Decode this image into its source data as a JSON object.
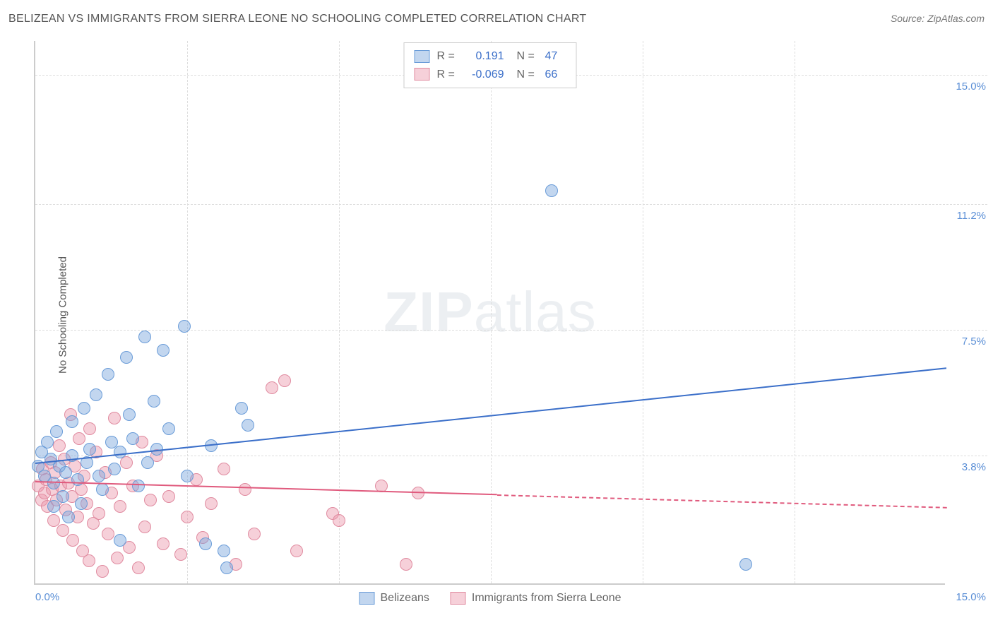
{
  "title": "BELIZEAN VS IMMIGRANTS FROM SIERRA LEONE NO SCHOOLING COMPLETED CORRELATION CHART",
  "source": "Source: ZipAtlas.com",
  "y_axis_label": "No Schooling Completed",
  "watermark": {
    "bold": "ZIP",
    "rest": "atlas"
  },
  "colors": {
    "series_a_fill": "rgba(120,165,220,0.45)",
    "series_a_stroke": "#6a9cd8",
    "series_b_fill": "rgba(235,150,170,0.45)",
    "series_b_stroke": "#e08ba0",
    "line_a": "#3b6fc9",
    "line_b": "#e05a7d",
    "axis_text": "#5b8fd6",
    "grid": "#dddddd",
    "title_text": "#555555"
  },
  "chart": {
    "type": "scatter",
    "xlim": [
      0,
      15
    ],
    "ylim": [
      0,
      16
    ],
    "y_ticks": [
      {
        "v": 3.8,
        "label": "3.8%"
      },
      {
        "v": 7.5,
        "label": "7.5%"
      },
      {
        "v": 11.2,
        "label": "11.2%"
      },
      {
        "v": 15.0,
        "label": "15.0%"
      }
    ],
    "x_ticks_v": [
      2.5,
      5.0,
      7.5,
      10.0,
      12.5
    ],
    "x_left_label": "0.0%",
    "x_right_label": "15.0%",
    "point_radius": 9
  },
  "legend_top": [
    {
      "swatch_fill": "rgba(120,165,220,0.45)",
      "swatch_stroke": "#6a9cd8",
      "r": "0.191",
      "n": "47"
    },
    {
      "swatch_fill": "rgba(235,150,170,0.45)",
      "swatch_stroke": "#e08ba0",
      "r": "-0.069",
      "n": "66"
    }
  ],
  "legend_bottom": [
    {
      "swatch_fill": "rgba(120,165,220,0.45)",
      "swatch_stroke": "#6a9cd8",
      "label": "Belizeans"
    },
    {
      "swatch_fill": "rgba(235,150,170,0.45)",
      "swatch_stroke": "#e08ba0",
      "label": "Immigrants from Sierra Leone"
    }
  ],
  "series_a": {
    "regression": {
      "x1": 0,
      "y1": 3.6,
      "x2": 15,
      "y2": 6.4,
      "solid_until_x": 15
    },
    "points": [
      [
        0.1,
        3.9
      ],
      [
        0.15,
        3.2
      ],
      [
        0.2,
        4.2
      ],
      [
        0.3,
        2.3
      ],
      [
        0.3,
        3.0
      ],
      [
        0.35,
        4.5
      ],
      [
        0.4,
        3.5
      ],
      [
        0.45,
        2.6
      ],
      [
        0.5,
        3.3
      ],
      [
        0.55,
        2.0
      ],
      [
        0.6,
        3.8
      ],
      [
        0.6,
        4.8
      ],
      [
        0.7,
        3.1
      ],
      [
        0.75,
        2.4
      ],
      [
        0.8,
        5.2
      ],
      [
        0.85,
        3.6
      ],
      [
        0.9,
        4.0
      ],
      [
        1.0,
        5.6
      ],
      [
        1.05,
        3.2
      ],
      [
        1.1,
        2.8
      ],
      [
        1.2,
        6.2
      ],
      [
        1.25,
        4.2
      ],
      [
        1.3,
        3.4
      ],
      [
        1.4,
        3.9
      ],
      [
        1.5,
        6.7
      ],
      [
        1.55,
        5.0
      ],
      [
        1.6,
        4.3
      ],
      [
        1.7,
        2.9
      ],
      [
        1.8,
        7.3
      ],
      [
        1.85,
        3.6
      ],
      [
        1.95,
        5.4
      ],
      [
        2.0,
        4.0
      ],
      [
        2.1,
        6.9
      ],
      [
        2.2,
        4.6
      ],
      [
        2.45,
        7.6
      ],
      [
        2.5,
        3.2
      ],
      [
        2.8,
        1.2
      ],
      [
        2.9,
        4.1
      ],
      [
        3.1,
        1.0
      ],
      [
        3.15,
        0.5
      ],
      [
        3.4,
        5.2
      ],
      [
        3.5,
        4.7
      ],
      [
        1.4,
        1.3
      ],
      [
        8.5,
        11.6
      ],
      [
        11.7,
        0.6
      ],
      [
        0.05,
        3.5
      ],
      [
        0.25,
        3.7
      ]
    ]
  },
  "series_b": {
    "regression": {
      "x1": 0,
      "y1": 3.05,
      "x2": 15,
      "y2": 2.3,
      "solid_until_x": 7.6
    },
    "points": [
      [
        0.05,
        2.9
      ],
      [
        0.1,
        2.5
      ],
      [
        0.12,
        3.4
      ],
      [
        0.15,
        2.7
      ],
      [
        0.18,
        3.1
      ],
      [
        0.2,
        2.3
      ],
      [
        0.25,
        3.6
      ],
      [
        0.28,
        2.8
      ],
      [
        0.3,
        1.9
      ],
      [
        0.32,
        3.3
      ],
      [
        0.35,
        2.5
      ],
      [
        0.4,
        4.1
      ],
      [
        0.42,
        2.9
      ],
      [
        0.45,
        1.6
      ],
      [
        0.48,
        3.7
      ],
      [
        0.5,
        2.2
      ],
      [
        0.55,
        3.0
      ],
      [
        0.58,
        5.0
      ],
      [
        0.6,
        2.6
      ],
      [
        0.62,
        1.3
      ],
      [
        0.65,
        3.5
      ],
      [
        0.7,
        2.0
      ],
      [
        0.72,
        4.3
      ],
      [
        0.75,
        2.8
      ],
      [
        0.78,
        1.0
      ],
      [
        0.8,
        3.2
      ],
      [
        0.85,
        2.4
      ],
      [
        0.88,
        0.7
      ],
      [
        0.9,
        4.6
      ],
      [
        0.95,
        1.8
      ],
      [
        1.0,
        3.9
      ],
      [
        1.05,
        2.1
      ],
      [
        1.1,
        0.4
      ],
      [
        1.15,
        3.3
      ],
      [
        1.2,
        1.5
      ],
      [
        1.25,
        2.7
      ],
      [
        1.3,
        4.9
      ],
      [
        1.35,
        0.8
      ],
      [
        1.4,
        2.3
      ],
      [
        1.5,
        3.6
      ],
      [
        1.55,
        1.1
      ],
      [
        1.6,
        2.9
      ],
      [
        1.7,
        0.5
      ],
      [
        1.75,
        4.2
      ],
      [
        1.8,
        1.7
      ],
      [
        1.9,
        2.5
      ],
      [
        2.0,
        3.8
      ],
      [
        2.1,
        1.2
      ],
      [
        2.2,
        2.6
      ],
      [
        2.4,
        0.9
      ],
      [
        2.5,
        2.0
      ],
      [
        2.65,
        3.1
      ],
      [
        2.75,
        1.4
      ],
      [
        2.9,
        2.4
      ],
      [
        3.1,
        3.4
      ],
      [
        3.3,
        0.6
      ],
      [
        3.45,
        2.8
      ],
      [
        3.6,
        1.5
      ],
      [
        3.9,
        5.8
      ],
      [
        4.1,
        6.0
      ],
      [
        4.3,
        1.0
      ],
      [
        4.9,
        2.1
      ],
      [
        5.0,
        1.9
      ],
      [
        5.7,
        2.9
      ],
      [
        6.1,
        0.6
      ],
      [
        6.3,
        2.7
      ]
    ]
  }
}
